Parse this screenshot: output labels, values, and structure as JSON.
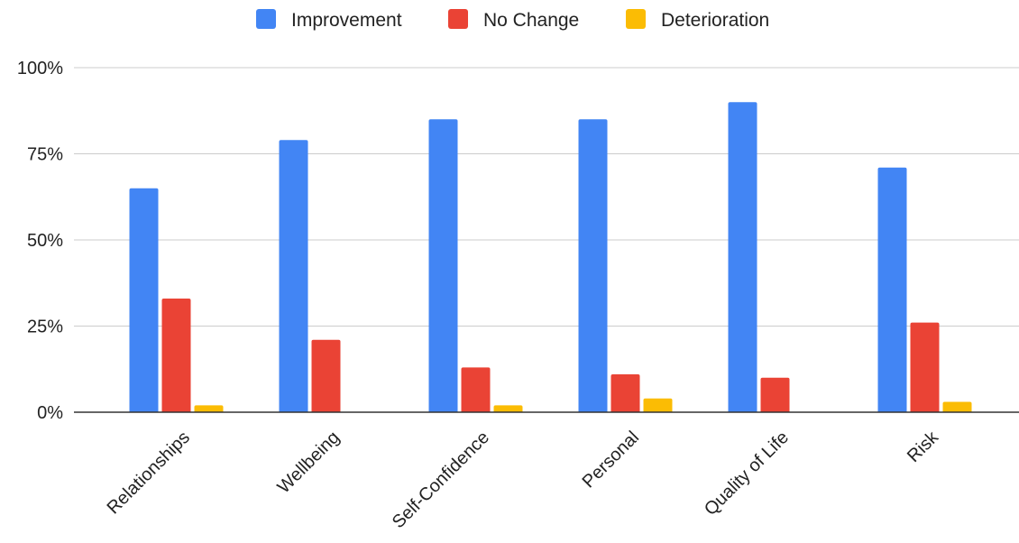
{
  "chart_data": {
    "type": "bar",
    "categories": [
      "Relationships",
      "Wellbeing",
      "Self-Confidence",
      "Personal",
      "Quality of Life",
      "Risk"
    ],
    "series": [
      {
        "name": "Improvement",
        "color": "#4285f4",
        "values": [
          65,
          79,
          85,
          85,
          90,
          71
        ]
      },
      {
        "name": "No Change",
        "color": "#ea4335",
        "values": [
          33,
          21,
          13,
          11,
          10,
          26
        ]
      },
      {
        "name": "Deterioration",
        "color": "#fbbc04",
        "values": [
          2,
          0,
          2,
          4,
          0,
          3
        ]
      }
    ],
    "ylim": [
      0,
      100
    ],
    "yticks": [
      0,
      25,
      50,
      75,
      100
    ],
    "ytick_labels": [
      "0%",
      "25%",
      "50%",
      "75%",
      "100%"
    ],
    "grid": true,
    "legend_position": "top"
  }
}
